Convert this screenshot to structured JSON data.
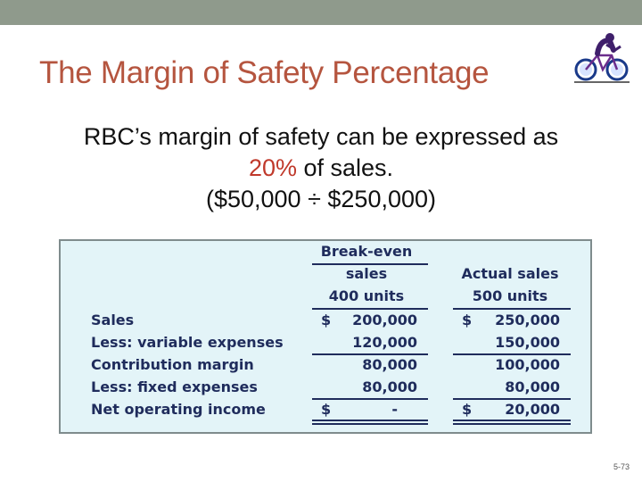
{
  "slide": {
    "title": "The Margin of Safety Percentage",
    "body_line1": "RBC’s margin of safety can be expressed as",
    "body_pct": "20%",
    "body_line2_rest": " of sales.",
    "body_line3": "($50,000 ÷ $250,000)",
    "icon": "bicycle-rider-icon",
    "slide_number": "5-73",
    "colors": {
      "title": "#b5553f",
      "highlight": "#c0392b",
      "panel_bg": "#e3f4f8",
      "table_text": "#1f2c5c"
    }
  },
  "table": {
    "col1_header": [
      "Break-even",
      "sales",
      "400 units"
    ],
    "col2_header": [
      "Actual sales",
      "500 units"
    ],
    "rows": [
      {
        "label": "Sales",
        "be_sign": "$",
        "be_value": "200,000",
        "act_sign": "$",
        "act_value": "250,000"
      },
      {
        "label": "Less: variable expenses",
        "be_sign": "",
        "be_value": "120,000",
        "act_sign": "",
        "act_value": "150,000"
      },
      {
        "label": "Contribution margin",
        "be_sign": "",
        "be_value": "80,000",
        "act_sign": "",
        "act_value": "100,000"
      },
      {
        "label": "Less: fixed expenses",
        "be_sign": "",
        "be_value": "80,000",
        "act_sign": "",
        "act_value": "80,000"
      },
      {
        "label": "Net operating income",
        "be_sign": "$",
        "be_value": "-",
        "act_sign": "$",
        "act_value": "20,000"
      }
    ]
  }
}
